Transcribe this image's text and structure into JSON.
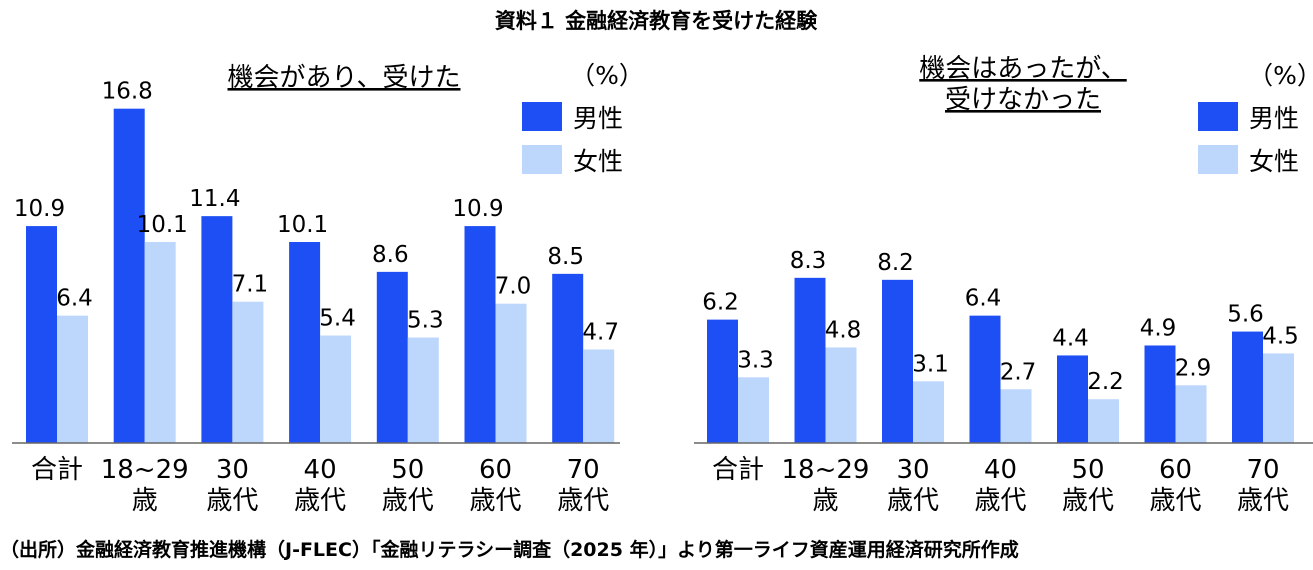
{
  "title": "資料１ 金融経済教育を受けた経験",
  "source": "（出所）金融経済教育推進機構（J-FLEC）「金融リテラシー調査（2025 年）」より第一ライフ資産運用経済研究所作成",
  "colors": {
    "male": "#1d4ff5",
    "female": "#bdd7fc"
  },
  "chart_data": [
    {
      "type": "bar",
      "title_lines": [
        "機会があり、受けた"
      ],
      "unit": "（%）",
      "categories": [
        [
          "合計"
        ],
        [
          "18~29",
          "歳"
        ],
        [
          "30",
          "歳代"
        ],
        [
          "40",
          "歳代"
        ],
        [
          "50",
          "歳代"
        ],
        [
          "60",
          "歳代"
        ],
        [
          "70",
          "歳代"
        ]
      ],
      "series": [
        {
          "name": "男性",
          "values": [
            "10.9",
            "16.8",
            "11.4",
            "10.1",
            "8.6",
            "10.9",
            "8.5"
          ]
        },
        {
          "name": "女性",
          "values": [
            "6.4",
            "10.1",
            "7.1",
            "5.4",
            "5.3",
            "7.0",
            "4.7"
          ]
        }
      ],
      "ylim": [
        0,
        21
      ]
    },
    {
      "type": "bar",
      "title_lines": [
        "機会はあったが、",
        "受けなかった"
      ],
      "unit": "（%）",
      "categories": [
        [
          "合計"
        ],
        [
          "18~29",
          "歳"
        ],
        [
          "30",
          "歳代"
        ],
        [
          "40",
          "歳代"
        ],
        [
          "50",
          "歳代"
        ],
        [
          "60",
          "歳代"
        ],
        [
          "70",
          "歳代"
        ]
      ],
      "series": [
        {
          "name": "男性",
          "values": [
            "6.2",
            "8.3",
            "8.2",
            "6.4",
            "4.4",
            "4.9",
            "5.6"
          ]
        },
        {
          "name": "女性",
          "values": [
            "3.3",
            "4.8",
            "3.1",
            "2.7",
            "2.2",
            "2.9",
            "4.5"
          ]
        }
      ],
      "ylim": [
        0,
        21
      ]
    }
  ]
}
